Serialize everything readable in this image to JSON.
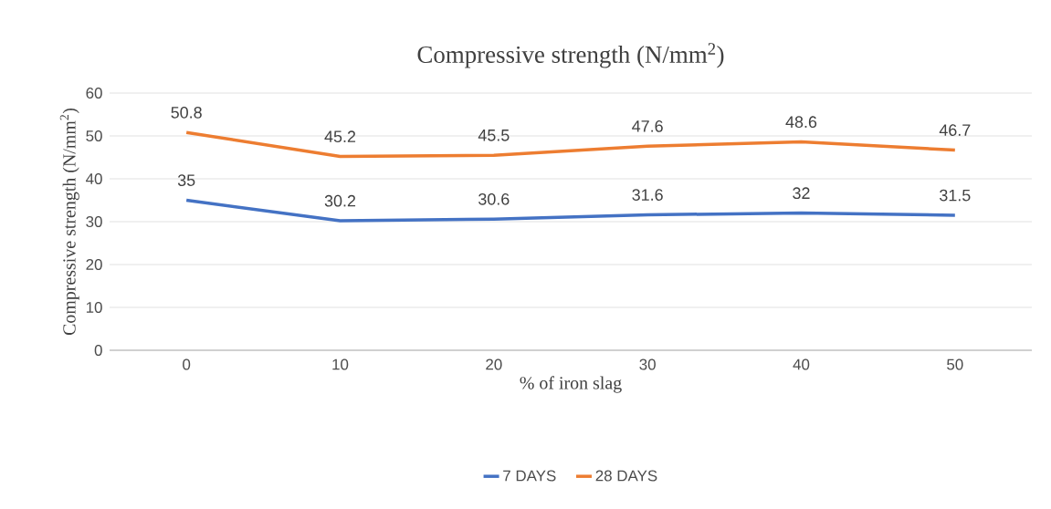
{
  "chart_data": {
    "type": "line",
    "title": "Compressive strength (N/mm$^{2}$)",
    "xlabel": "% of iron slag",
    "ylabel": "Compressive strength (N/mm$^{2}$)",
    "categories": [
      "0",
      "10",
      "20",
      "30",
      "40",
      "50"
    ],
    "series": [
      {
        "name": "7 DAYS",
        "color": "#4472c4",
        "values": [
          35,
          30.2,
          30.6,
          31.6,
          32,
          31.5
        ]
      },
      {
        "name": "28 DAYS",
        "color": "#ed7d31",
        "values": [
          50.8,
          45.2,
          45.5,
          47.6,
          48.6,
          46.7
        ]
      }
    ],
    "ylim": [
      0,
      60
    ],
    "yticks": [
      0,
      10,
      20,
      30,
      40,
      50,
      60
    ],
    "grid": "y",
    "legend": "bottom",
    "data_labels": true,
    "marker": "none",
    "line_style": "solid"
  }
}
